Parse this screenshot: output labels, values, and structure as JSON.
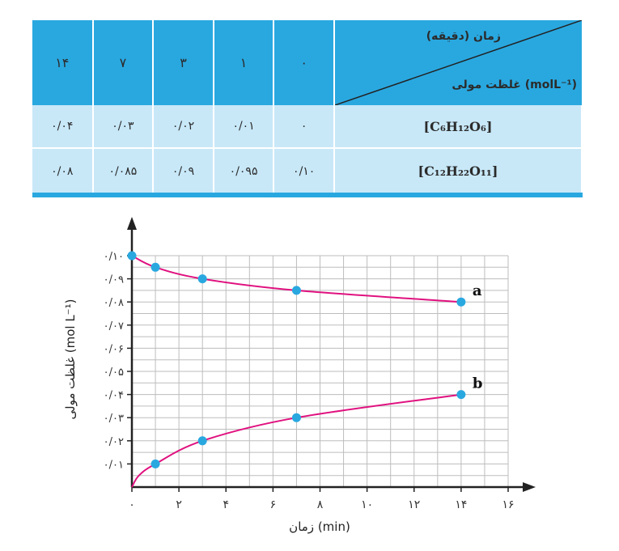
{
  "table": {
    "header_time": "زمان (دقیقه)",
    "header_conc": "غلظت مولی (molL⁻¹)",
    "times": [
      "۰",
      "۱",
      "۳",
      "۷",
      "۱۴"
    ],
    "rows": [
      {
        "label": "[C₆H₁₂O₆]",
        "values": [
          "۰",
          "۰/۰۱",
          "۰/۰۲",
          "۰/۰۳",
          "۰/۰۴"
        ]
      },
      {
        "label": "[C₁₂H₂₂O₁₁]",
        "values": [
          "۰/۱۰",
          "۰/۰۹۵",
          "۰/۰۹",
          "۰/۰۸۵",
          "۰/۰۸"
        ]
      }
    ]
  },
  "chart_data": {
    "type": "line",
    "xlabel": "زمان (min)",
    "ylabel": "غلظت مولی (mol L⁻¹)",
    "xlim": [
      0,
      16
    ],
    "ylim": [
      0,
      0.1
    ],
    "grid": true,
    "x_ticks": [
      0,
      2,
      4,
      6,
      8,
      10,
      12,
      14,
      16
    ],
    "x_tick_labels": [
      "۰",
      "۲",
      "۴",
      "۶",
      "۸",
      "۱۰",
      "۱۲",
      "۱۴",
      "۱۶"
    ],
    "y_ticks": [
      0.01,
      0.02,
      0.03,
      0.04,
      0.05,
      0.06,
      0.07,
      0.08,
      0.09,
      0.1
    ],
    "y_tick_labels": [
      "۰/۰۱",
      "۰/۰۲",
      "۰/۰۳",
      "۰/۰۴",
      "۰/۰۵",
      "۰/۰۶",
      "۰/۰۷",
      "۰/۰۸",
      "۰/۰۹",
      "۰/۱۰"
    ],
    "series": [
      {
        "name": "a",
        "x": [
          0,
          1,
          3,
          7,
          14
        ],
        "y": [
          0.1,
          0.095,
          0.09,
          0.085,
          0.08
        ]
      },
      {
        "name": "b",
        "x": [
          0,
          1,
          3,
          7,
          14
        ],
        "y": [
          0,
          0.01,
          0.02,
          0.03,
          0.04
        ]
      }
    ],
    "colors": {
      "curve": "#e0117f",
      "marker": "#29a8e0",
      "grid": "#bdbdbd",
      "axis": "#222222"
    }
  }
}
